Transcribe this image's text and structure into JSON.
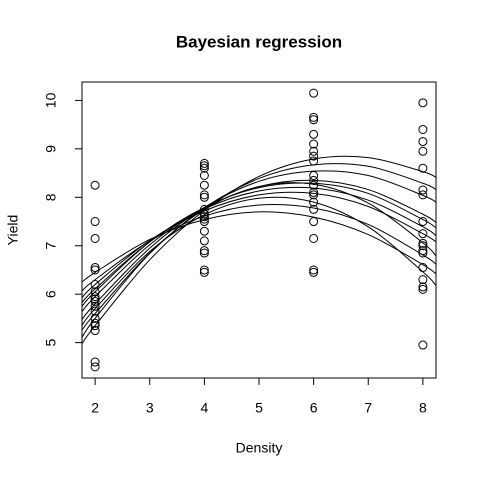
{
  "chart_data": {
    "type": "scatter",
    "title": "Bayesian regression",
    "x_label": "Density",
    "y_label": "Yield",
    "xlim": [
      1.76,
      8.24
    ],
    "ylim": [
      4.27,
      10.38
    ],
    "xticks": [
      2,
      3,
      4,
      5,
      6,
      7,
      8
    ],
    "yticks": [
      5,
      6,
      7,
      8,
      9,
      10
    ],
    "color": "#000000",
    "x": [
      2,
      2,
      2,
      2,
      2,
      2,
      2,
      2,
      2,
      2,
      2,
      2,
      2,
      2,
      2,
      2,
      2,
      2,
      4,
      4,
      4,
      4,
      4,
      4,
      4,
      4,
      4,
      4,
      4,
      4,
      4,
      4,
      4,
      4,
      4,
      4,
      6,
      6,
      6,
      6,
      6,
      6,
      6,
      6,
      6,
      6,
      6,
      6,
      6,
      6,
      6,
      6,
      6,
      6,
      6,
      8,
      8,
      8,
      8,
      8,
      8,
      8,
      8,
      8,
      8,
      8,
      8,
      8,
      8,
      8,
      8,
      8,
      8
    ],
    "y": [
      8.25,
      7.5,
      7.15,
      6.55,
      6.5,
      6.2,
      6.05,
      5.95,
      5.9,
      5.85,
      5.75,
      5.65,
      5.5,
      5.4,
      5.35,
      5.25,
      4.6,
      4.5,
      8.7,
      8.65,
      8.6,
      8.45,
      8.25,
      8.05,
      8.0,
      7.75,
      7.65,
      7.6,
      7.55,
      7.5,
      7.3,
      7.1,
      6.9,
      6.85,
      6.5,
      6.45,
      10.15,
      9.65,
      9.6,
      9.3,
      9.1,
      8.95,
      8.85,
      8.75,
      8.45,
      8.35,
      8.25,
      8.1,
      8.05,
      7.9,
      7.75,
      7.5,
      7.15,
      6.5,
      6.45,
      9.95,
      9.4,
      9.15,
      8.95,
      8.6,
      8.15,
      8.05,
      7.5,
      7.25,
      7.05,
      7.0,
      6.9,
      6.85,
      6.55,
      6.3,
      6.15,
      6.1,
      4.95
    ],
    "lines": {
      "x": [
        1.76,
        2,
        3,
        4,
        5,
        6,
        7,
        8,
        8.24
      ],
      "color": "#000000",
      "series": [
        {
          "values": [
            4.98,
            5.35,
            6.71,
            7.73,
            8.43,
            8.79,
            8.82,
            8.53,
            8.41
          ]
        },
        {
          "values": [
            5.26,
            5.6,
            6.85,
            7.78,
            8.39,
            8.67,
            8.64,
            8.29,
            8.16
          ]
        },
        {
          "values": [
            5.48,
            5.8,
            6.95,
            7.79,
            8.33,
            8.54,
            8.45,
            8.04,
            7.9
          ]
        },
        {
          "values": [
            5.64,
            5.95,
            7.02,
            7.78,
            8.22,
            8.35,
            8.16,
            7.65,
            7.48
          ]
        },
        {
          "values": [
            5.75,
            6.05,
            7.08,
            7.79,
            8.2,
            8.29,
            8.08,
            7.54,
            7.37
          ]
        },
        {
          "values": [
            5.83,
            6.11,
            7.08,
            7.76,
            8.13,
            8.19,
            7.94,
            7.39,
            7.21
          ]
        },
        {
          "values": [
            5.93,
            6.2,
            7.11,
            7.72,
            8.05,
            8.08,
            7.81,
            7.25,
            7.08
          ]
        },
        {
          "values": [
            6.07,
            6.3,
            7.1,
            7.61,
            7.84,
            7.78,
            7.44,
            6.81,
            6.62
          ]
        },
        {
          "values": [
            6.25,
            6.45,
            7.13,
            7.54,
            7.7,
            7.59,
            7.23,
            6.61,
            6.42
          ]
        },
        {
          "values": [
            5.11,
            5.5,
            6.84,
            7.75,
            8.22,
            8.27,
            7.88,
            7.06,
            6.79
          ]
        },
        {
          "values": [
            5.36,
            5.7,
            6.88,
            7.64,
            7.98,
            7.9,
            7.39,
            6.46,
            6.18
          ]
        }
      ]
    }
  }
}
